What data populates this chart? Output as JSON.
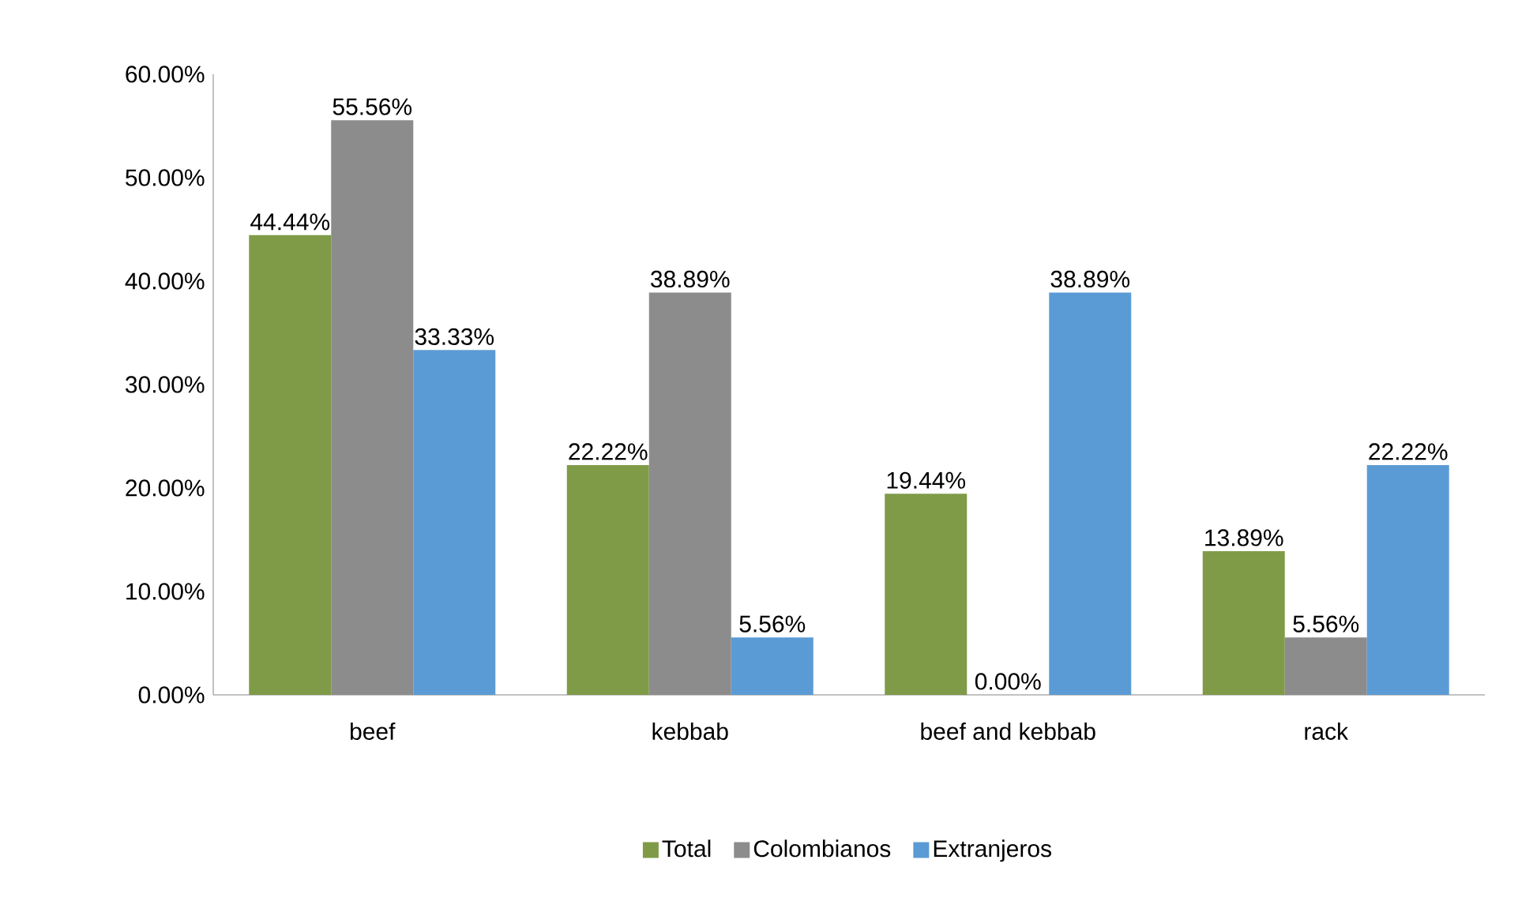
{
  "chart_data": {
    "type": "bar",
    "categories": [
      "beef",
      "kebbab",
      "beef and kebbab",
      "rack"
    ],
    "series": [
      {
        "name": "Total",
        "color": "#7f9b48",
        "values": [
          44.44,
          22.22,
          19.44,
          13.89
        ],
        "value_labels": [
          "44.44%",
          "22.22%",
          "19.44%",
          "13.89%"
        ]
      },
      {
        "name": "Colombianos",
        "color": "#8c8c8c",
        "values": [
          55.56,
          38.89,
          0,
          5.56
        ],
        "value_labels": [
          "55.56%",
          "38.89%",
          "0.00%",
          "5.56%"
        ]
      },
      {
        "name": "Extranjeros",
        "color": "#5b9bd5",
        "values": [
          33.33,
          5.56,
          38.89,
          22.22
        ],
        "value_labels": [
          "33.33%",
          "5.56%",
          "38.89%",
          "22.22%"
        ]
      }
    ],
    "ylim": [
      0,
      60
    ],
    "yticks": [
      {
        "value": 0,
        "label": "0.00%"
      },
      {
        "value": 10,
        "label": "10.00%"
      },
      {
        "value": 20,
        "label": "20.00%"
      },
      {
        "value": 30,
        "label": "30.00%"
      },
      {
        "value": 40,
        "label": "40.00%"
      },
      {
        "value": 50,
        "label": "50.00%"
      },
      {
        "value": 60,
        "label": "60.00%"
      }
    ],
    "grid": false,
    "legend": "bottom"
  }
}
